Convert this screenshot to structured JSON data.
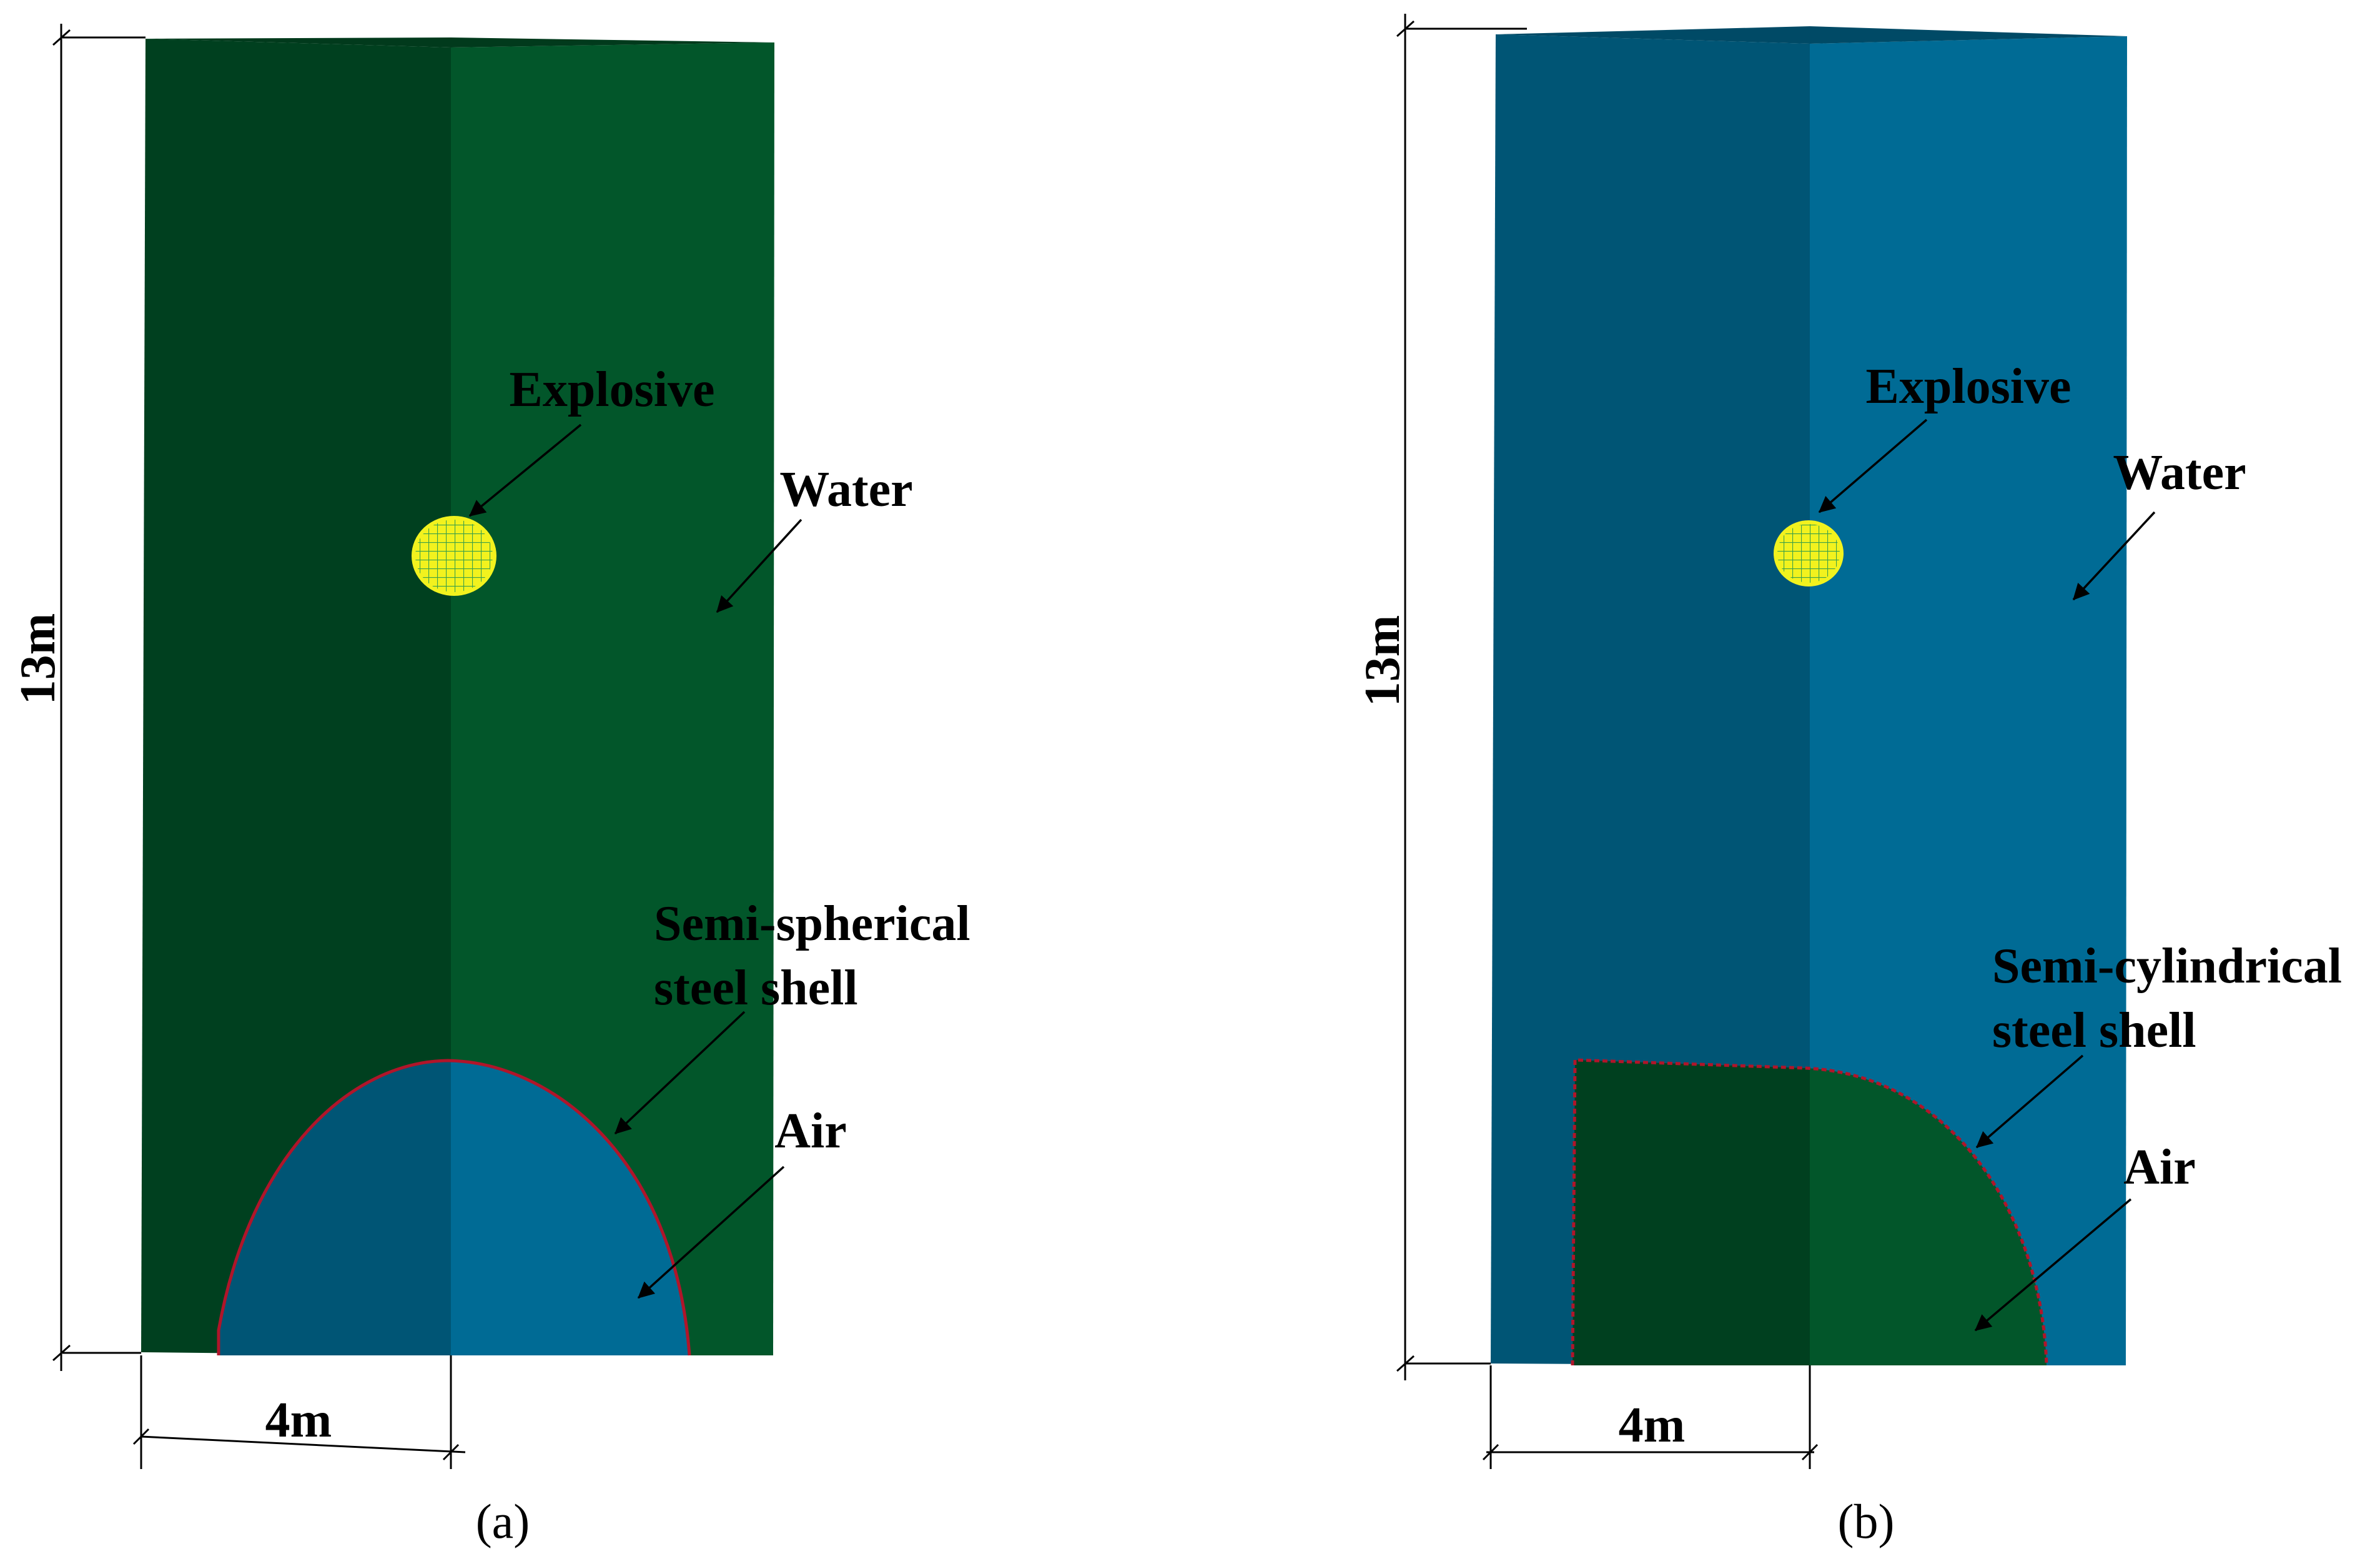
{
  "panel_a": {
    "height_label": "13m",
    "width_label": "4m",
    "explosive_label": "Explosive",
    "water_label": "Water",
    "shell_label_line1": "Semi-spherical",
    "shell_label_line2": "steel shell",
    "air_label": "Air",
    "caption": "(a)",
    "colors": {
      "water_dark": "#00401f",
      "water_light": "#02562a",
      "air_dark": "#005575",
      "air_light": "#006b95",
      "explosive": "#f2f21e"
    }
  },
  "panel_b": {
    "height_label": "13m",
    "width_label": "4m",
    "explosive_label": "Explosive",
    "water_label": "Water",
    "shell_label_line1": "Semi-cylindrical",
    "shell_label_line2": "steel shell",
    "air_label": "Air",
    "caption": "(b)",
    "colors": {
      "water_dark": "#005575",
      "water_light": "#006b95",
      "air_dark": "#00401f",
      "air_light": "#02562a",
      "explosive": "#f2f21e"
    }
  }
}
